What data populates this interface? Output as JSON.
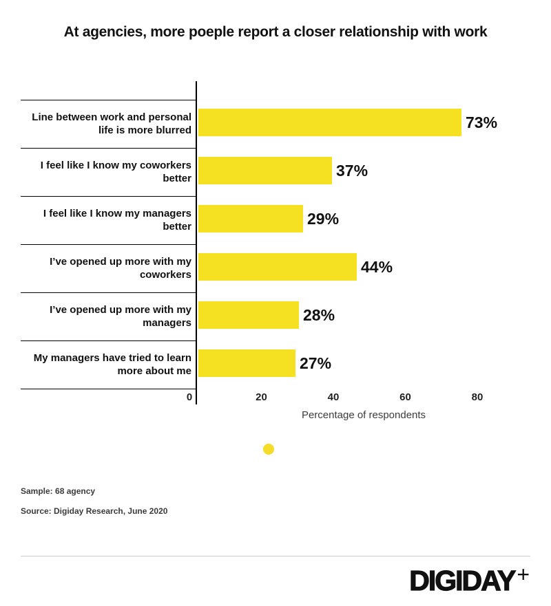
{
  "title": "At agencies, more poeple report a closer relationship with work",
  "chart_data": {
    "type": "bar",
    "orientation": "horizontal",
    "categories": [
      "Line between work and personal life is more blurred",
      "I feel like I know my coworkers better",
      "I feel like I know my managers better",
      "I’ve opened up more with my coworkers",
      "I’ve opened up more with my managers",
      "My managers have tried to learn more about me"
    ],
    "values": [
      73,
      37,
      29,
      44,
      28,
      27
    ],
    "value_labels": [
      "73%",
      "37%",
      "29%",
      "44%",
      "28%",
      "27%"
    ],
    "xticks": [
      "0",
      "20",
      "40",
      "60",
      "80"
    ],
    "xtick_values": [
      0,
      20,
      40,
      60,
      80
    ],
    "xlim": [
      0,
      80
    ],
    "xlabel": "Percentage of respondents",
    "bar_color": "#F5E122",
    "legend_marker_color": "#F5DC28",
    "legend_position": "bottom-center",
    "grid": false
  },
  "footnotes": {
    "sample": "Sample: 68 agency",
    "source": "Source: Digiday Research, June 2020"
  },
  "logo": {
    "text": "DIGIDAY",
    "plus": "+"
  }
}
